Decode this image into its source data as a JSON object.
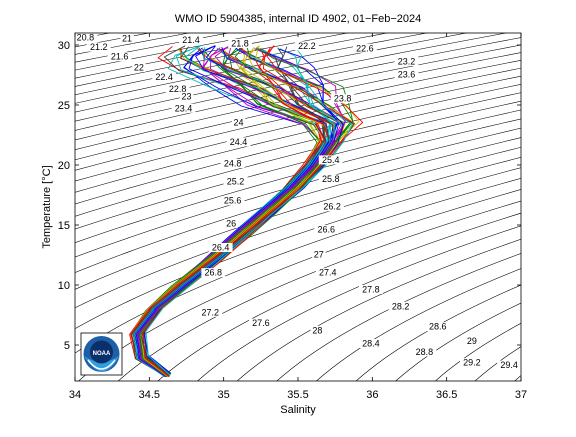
{
  "chart_data": {
    "type": "line",
    "title": "WMO ID 5904385, internal ID 4902, 01−Feb−2024",
    "xlabel": "Salinity",
    "ylabel": "Temperature [°C]",
    "xlim": [
      34,
      37
    ],
    "ylim": [
      2,
      31
    ],
    "xticks": [
      "34",
      "34.5",
      "35",
      "35.5",
      "36",
      "36.5",
      "37"
    ],
    "yticks": [
      "5",
      "10",
      "15",
      "20",
      "25",
      "30"
    ],
    "grid": false,
    "contour_labels": [
      {
        "text": "20.8",
        "s": 34.07,
        "t": 30.5
      },
      {
        "text": "21",
        "s": 34.35,
        "t": 30.4
      },
      {
        "text": "21.2",
        "s": 34.16,
        "t": 29.7
      },
      {
        "text": "21.4",
        "s": 34.78,
        "t": 30.3
      },
      {
        "text": "21.6",
        "s": 34.3,
        "t": 28.9
      },
      {
        "text": "21.8",
        "s": 35.11,
        "t": 30.0
      },
      {
        "text": "22",
        "s": 34.43,
        "t": 28.0
      },
      {
        "text": "22.2",
        "s": 35.56,
        "t": 29.8
      },
      {
        "text": "22.4",
        "s": 34.6,
        "t": 27.2
      },
      {
        "text": "22.6",
        "s": 35.95,
        "t": 29.6
      },
      {
        "text": "22.8",
        "s": 34.69,
        "t": 26.2
      },
      {
        "text": "23",
        "s": 34.75,
        "t": 25.6
      },
      {
        "text": "23.2",
        "s": 36.23,
        "t": 28.5
      },
      {
        "text": "23.4",
        "s": 34.73,
        "t": 24.6
      },
      {
        "text": "23.6",
        "s": 36.23,
        "t": 27.4
      },
      {
        "text": "23.8",
        "s": 35.8,
        "t": 25.4
      },
      {
        "text": "24",
        "s": 35.1,
        "t": 23.4
      },
      {
        "text": "24.4",
        "s": 35.1,
        "t": 21.8
      },
      {
        "text": "24.8",
        "s": 35.06,
        "t": 20.0
      },
      {
        "text": "25.2",
        "s": 35.08,
        "t": 18.5
      },
      {
        "text": "25.4",
        "s": 35.72,
        "t": 20.3
      },
      {
        "text": "25.6",
        "s": 35.06,
        "t": 16.9
      },
      {
        "text": "25.8",
        "s": 35.72,
        "t": 18.7
      },
      {
        "text": "26",
        "s": 35.05,
        "t": 15.0
      },
      {
        "text": "26.2",
        "s": 35.73,
        "t": 16.4
      },
      {
        "text": "26.4",
        "s": 34.98,
        "t": 13.0
      },
      {
        "text": "26.6",
        "s": 35.69,
        "t": 14.5
      },
      {
        "text": "26.8",
        "s": 34.93,
        "t": 10.9
      },
      {
        "text": "27",
        "s": 35.64,
        "t": 12.4
      },
      {
        "text": "27.2",
        "s": 34.91,
        "t": 7.6
      },
      {
        "text": "27.4",
        "s": 35.7,
        "t": 10.9
      },
      {
        "text": "27.6",
        "s": 35.25,
        "t": 6.7
      },
      {
        "text": "27.8",
        "s": 35.99,
        "t": 9.5
      },
      {
        "text": "28",
        "s": 35.63,
        "t": 6.1
      },
      {
        "text": "28.2",
        "s": 36.19,
        "t": 8.1
      },
      {
        "text": "28.4",
        "s": 35.99,
        "t": 5.0
      },
      {
        "text": "28.6",
        "s": 36.44,
        "t": 6.4
      },
      {
        "text": "28.8",
        "s": 36.35,
        "t": 4.3
      },
      {
        "text": "29",
        "s": 36.67,
        "t": 5.2
      },
      {
        "text": "29.2",
        "s": 36.67,
        "t": 3.4
      },
      {
        "text": "29.4",
        "s": 36.92,
        "t": 3.2
      }
    ],
    "profile_envelope": [
      {
        "t": 2.5,
        "s": [
          34.6,
          34.65
        ]
      },
      {
        "t": 4.0,
        "s": [
          34.4,
          34.5
        ]
      },
      {
        "t": 6.0,
        "s": [
          34.36,
          34.48
        ]
      },
      {
        "t": 8.0,
        "s": [
          34.47,
          34.6
        ]
      },
      {
        "t": 10.0,
        "s": [
          34.64,
          34.8
        ]
      },
      {
        "t": 12.0,
        "s": [
          34.84,
          35.0
        ]
      },
      {
        "t": 14.0,
        "s": [
          35.02,
          35.19
        ]
      },
      {
        "t": 16.0,
        "s": [
          35.2,
          35.37
        ]
      },
      {
        "t": 18.0,
        "s": [
          35.38,
          35.55
        ]
      },
      {
        "t": 20.0,
        "s": [
          35.52,
          35.7
        ]
      },
      {
        "t": 22.0,
        "s": [
          35.62,
          35.82
        ]
      },
      {
        "t": 23.5,
        "s": [
          35.5,
          35.95
        ]
      },
      {
        "t": 25.0,
        "s": [
          35.1,
          35.9
        ]
      },
      {
        "t": 26.5,
        "s": [
          34.85,
          35.85
        ]
      },
      {
        "t": 28.0,
        "s": [
          34.55,
          35.7
        ]
      },
      {
        "t": 29.0,
        "s": [
          34.5,
          35.6
        ]
      },
      {
        "t": 29.8,
        "s": [
          34.6,
          35.5
        ]
      }
    ],
    "series_count": 60,
    "colors": [
      "#0000ff",
      "#008000",
      "#ff0000",
      "#00bfbf",
      "#bf00bf",
      "#bfbf00",
      "#404040"
    ],
    "logo": "NOAA"
  }
}
